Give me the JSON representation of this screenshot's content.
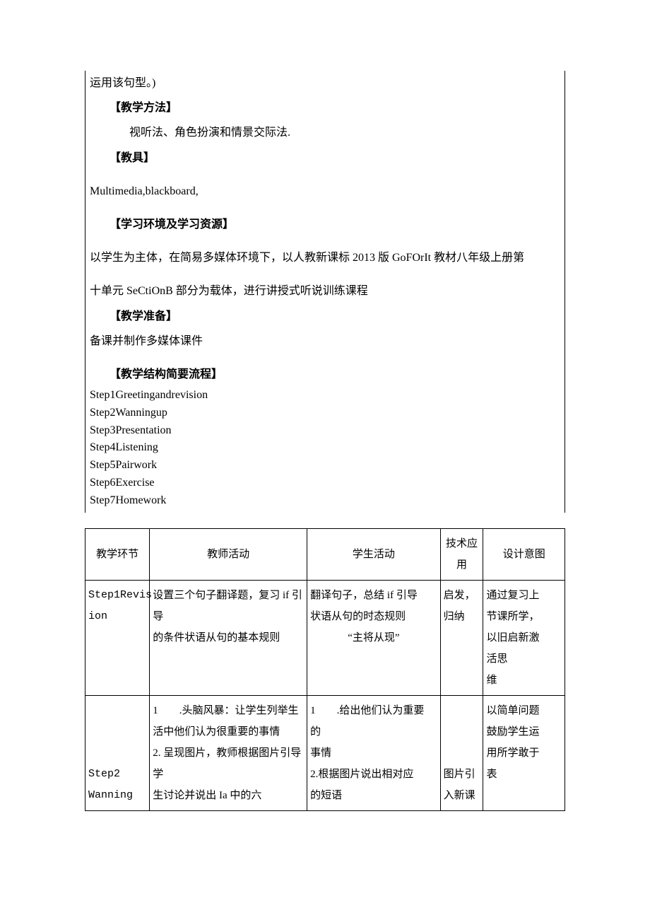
{
  "upper": {
    "line_top": "运用该句型。)",
    "sec1_title": "【教学方法】",
    "sec1_body": "视听法、角色扮演和情景交际法.",
    "sec2_title": "【教具】",
    "sec2_body": "Multimedia,blackboard,",
    "sec3_title": "【学习环境及学习资源】",
    "sec3_body_a": "以学生为主体，在简易多媒体环境下，以人教新课标 2013 版 GoFOrIt 教材八年级上册第",
    "sec3_body_b": "十单元 SeCtiOnB 部分为载体，进行讲授式听说训练课程",
    "sec4_title": "【教学准备】",
    "sec4_body": "备课并制作多媒体课件",
    "sec5_title": "【教学结构简要流程】",
    "steps": [
      "Step1Greetingandrevision",
      "Step2Wanningup",
      "Step3Presentation",
      "Step4Listening",
      "Step5Pairwork",
      "Step6Exercise",
      "Step7Homework"
    ]
  },
  "table": {
    "headers": {
      "c1": "教学环节",
      "c2": "教师活动",
      "c3": "学生活动",
      "c4_a": "技术应",
      "c4_b": "用",
      "c5": "设计意图"
    },
    "row1": {
      "c1_a": "Step1Revis",
      "c1_b": "ion",
      "c2_a": "设置三个句子翻译题，复习 if 引导",
      "c2_b": "的条件状语从句的基本规则",
      "c3_a": "翻译句子，总结 if 引导",
      "c3_b": "状语从句的时态规则",
      "c3_c": "“主将从现”",
      "c4_a": "启发，",
      "c4_b": "归纳",
      "c5_a": "通过复习上",
      "c5_b": "节课所学，",
      "c5_c": "以旧启新激",
      "c5_d": "活思",
      "c5_e": "维"
    },
    "row2": {
      "c1_a": "Step2",
      "c1_b": "Wanning",
      "c2_a": "1        .头脑风暴：让学生列举生",
      "c2_b": "活中他们认为很重要的事情",
      "c2_c": "2. 呈现图片，教师根据图片引导学",
      "c2_d": "生讨论并说出 Ia 中的六",
      "c3_a": "1        .给出他们认为重要",
      "c3_b": "的",
      "c3_c": "事情",
      "c3_d": "2.根据图片说出相对应",
      "c3_e": "的短语",
      "c4_a": "图片引",
      "c4_b": "入新课",
      "c5_a": "以简单问题",
      "c5_b": "鼓励学生运",
      "c5_c": "用所学敢于",
      "c5_d": "表"
    }
  }
}
